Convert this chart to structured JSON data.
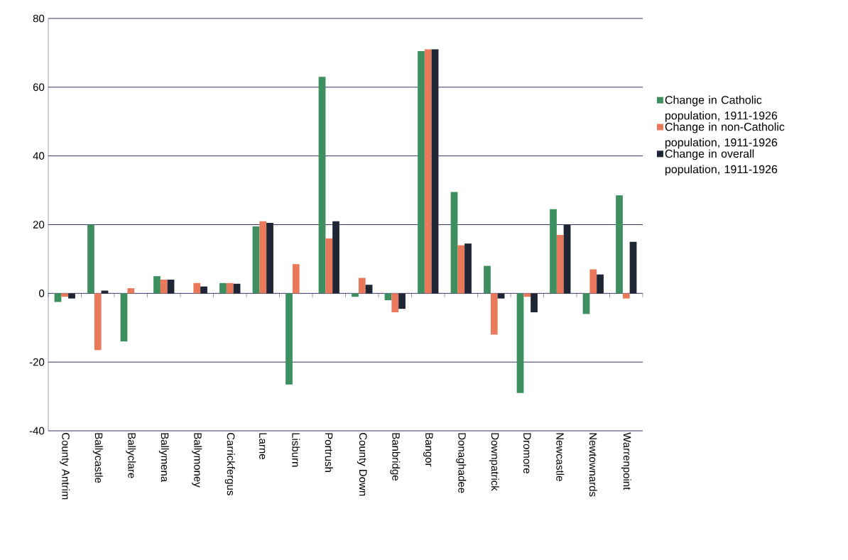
{
  "chart_data": {
    "type": "bar",
    "categories": [
      "County Antrim",
      "Ballycastle",
      "Ballyclare",
      "Ballymena",
      "Ballymoney",
      "Carrickfergus",
      "Larne",
      "Lisburn",
      "Portrush",
      "County Down",
      "Banbridge",
      "Bangor",
      "Donaghadee",
      "Downpatrick",
      "Dromore",
      "Newcastle",
      "Newtownards",
      "Warrenpoint"
    ],
    "series": [
      {
        "name": "Change in Catholic population, 1911-1926",
        "color": "#3d8f5f",
        "values": [
          -2.5,
          20,
          -14,
          5,
          0,
          3,
          19.5,
          -26.5,
          63,
          -1,
          -2,
          70.5,
          29.5,
          8,
          -29,
          24.5,
          -6,
          28.5
        ]
      },
      {
        "name": "Change in non-Catholic population, 1911-1926",
        "color": "#e9795a",
        "values": [
          -1,
          -16.5,
          1.5,
          4,
          3,
          3,
          21,
          8.5,
          16,
          4.5,
          -5.5,
          71,
          14,
          -12,
          -1,
          17,
          7,
          -1.5
        ]
      },
      {
        "name": "Change in overall population, 1911-1926",
        "color": "#1f2535",
        "values": [
          -1.5,
          0.8,
          0,
          4,
          2,
          2.8,
          20.5,
          0,
          21,
          2.5,
          -4.5,
          71,
          14.5,
          -1.5,
          -5.5,
          20,
          5.5,
          15
        ]
      }
    ],
    "ylim": [
      -40,
      80
    ],
    "yticks": [
      -40,
      -20,
      0,
      20,
      40,
      60,
      80
    ],
    "grid": "y",
    "legend": "right"
  }
}
